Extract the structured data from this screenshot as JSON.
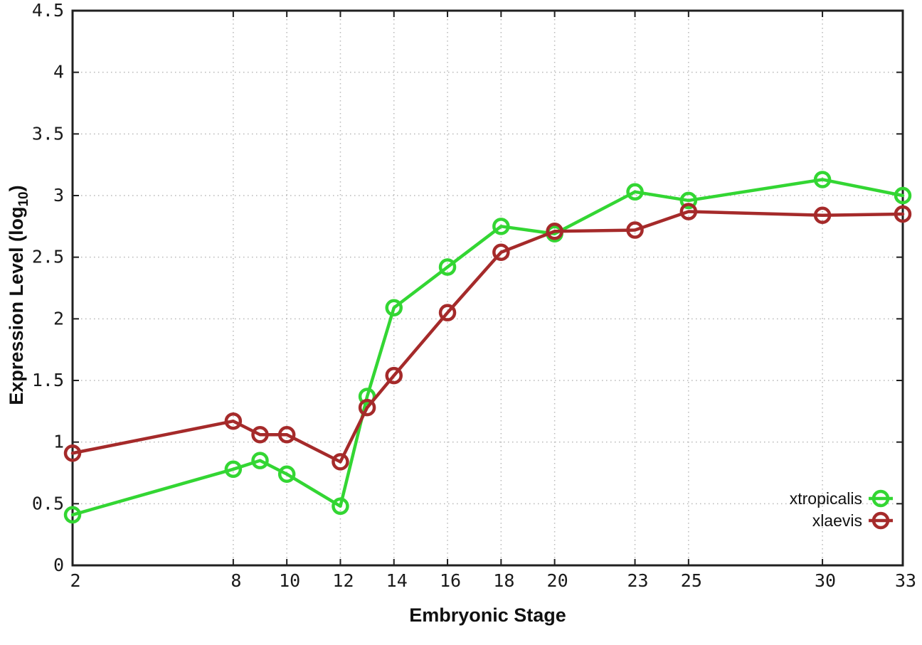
{
  "chart_data": {
    "type": "line",
    "title": "",
    "xlabel": "Embryonic Stage",
    "ylabel": "Expression Level (log10)",
    "ylabel_parts": [
      "Expression Level (log",
      "10",
      ")"
    ],
    "xlim": [
      2,
      33
    ],
    "ylim": [
      0,
      4.5
    ],
    "xtick_values": [
      2,
      8,
      10,
      12,
      14,
      16,
      18,
      20,
      23,
      25,
      30,
      33
    ],
    "xtick_labels": [
      "2",
      "8",
      "10",
      "12",
      "14",
      "16",
      "18",
      "20",
      "23",
      "25",
      "30",
      "33"
    ],
    "ytick_values": [
      0,
      0.5,
      1,
      1.5,
      2,
      2.5,
      3,
      3.5,
      4,
      4.5
    ],
    "ytick_labels": [
      "0",
      "0.5",
      "1",
      "1.5",
      "2",
      "2.5",
      "3",
      "3.5",
      "4",
      "4.5"
    ],
    "grid": true,
    "legend": {
      "position": "inside-bottom-right"
    },
    "x": [
      2,
      8,
      9,
      10,
      12,
      13,
      14,
      16,
      18,
      20,
      23,
      25,
      30,
      33
    ],
    "series": [
      {
        "name": "xtropicalis",
        "color": "#33d633",
        "marker": "open-circle",
        "values": [
          0.41,
          0.78,
          0.85,
          0.74,
          0.48,
          1.37,
          2.09,
          2.42,
          2.75,
          2.69,
          3.03,
          2.96,
          3.13,
          3.0
        ]
      },
      {
        "name": "xlaevis",
        "color": "#a52a2a",
        "marker": "open-circle",
        "values": [
          0.91,
          1.17,
          1.06,
          1.06,
          0.84,
          1.28,
          1.54,
          2.05,
          2.54,
          2.71,
          2.72,
          2.87,
          2.84,
          2.85
        ]
      }
    ],
    "colors": {
      "grid": "#b8b8b8",
      "axis": "#202020",
      "text": "#1a1a1a",
      "background": "#ffffff"
    }
  }
}
